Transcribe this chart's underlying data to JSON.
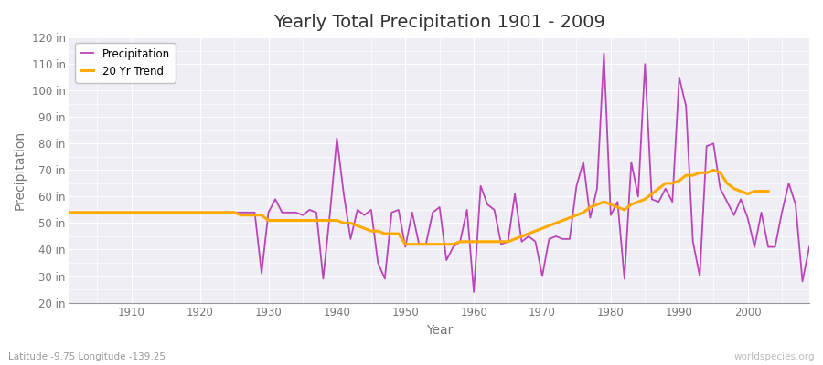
{
  "title": "Yearly Total Precipitation 1901 - 2009",
  "xlabel": "Year",
  "ylabel": "Precipitation",
  "lat_lon_label": "Latitude -9.75 Longitude -139.25",
  "watermark": "worldspecies.org",
  "ylim": [
    20,
    120
  ],
  "yticks": [
    20,
    30,
    40,
    50,
    60,
    70,
    80,
    90,
    100,
    110,
    120
  ],
  "ytick_labels": [
    "20 in",
    "30 in",
    "40 in",
    "50 in",
    "60 in",
    "70 in",
    "80 in",
    "90 in",
    "100 in",
    "110 in",
    "120 in"
  ],
  "xlim": [
    1901,
    2009
  ],
  "xticks": [
    1910,
    1920,
    1930,
    1940,
    1950,
    1960,
    1970,
    1980,
    1990,
    2000
  ],
  "outer_bg_color": "#ffffff",
  "plot_bg_color": "#eeeef4",
  "grid_color": "#ffffff",
  "precip_color": "#bb44bb",
  "trend_color": "#ffaa00",
  "precip_label": "Precipitation",
  "trend_label": "20 Yr Trend",
  "title_color": "#333333",
  "axis_color": "#777777",
  "years": [
    1901,
    1902,
    1903,
    1904,
    1905,
    1906,
    1907,
    1908,
    1909,
    1910,
    1911,
    1912,
    1913,
    1914,
    1915,
    1916,
    1917,
    1918,
    1919,
    1920,
    1921,
    1922,
    1923,
    1924,
    1925,
    1926,
    1927,
    1928,
    1929,
    1930,
    1931,
    1932,
    1933,
    1934,
    1935,
    1936,
    1937,
    1938,
    1939,
    1940,
    1941,
    1942,
    1943,
    1944,
    1945,
    1946,
    1947,
    1948,
    1949,
    1950,
    1951,
    1952,
    1953,
    1954,
    1955,
    1956,
    1957,
    1958,
    1959,
    1960,
    1961,
    1962,
    1963,
    1964,
    1965,
    1966,
    1967,
    1968,
    1969,
    1970,
    1971,
    1972,
    1973,
    1974,
    1975,
    1976,
    1977,
    1978,
    1979,
    1980,
    1981,
    1982,
    1983,
    1984,
    1985,
    1986,
    1987,
    1988,
    1989,
    1990,
    1991,
    1992,
    1993,
    1994,
    1995,
    1996,
    1997,
    1998,
    1999,
    2000,
    2001,
    2002,
    2003,
    2004,
    2005,
    2006,
    2007,
    2008,
    2009
  ],
  "precipitation": [
    54,
    54,
    54,
    54,
    54,
    54,
    54,
    54,
    54,
    54,
    54,
    54,
    54,
    54,
    54,
    54,
    54,
    54,
    54,
    54,
    54,
    54,
    54,
    54,
    54,
    54,
    54,
    54,
    31,
    54,
    59,
    54,
    54,
    54,
    53,
    55,
    54,
    29,
    54,
    82,
    61,
    44,
    55,
    53,
    55,
    35,
    29,
    54,
    55,
    41,
    54,
    42,
    42,
    54,
    56,
    36,
    41,
    43,
    55,
    24,
    64,
    57,
    55,
    42,
    43,
    61,
    43,
    45,
    43,
    30,
    44,
    45,
    44,
    44,
    64,
    73,
    52,
    63,
    114,
    53,
    58,
    29,
    73,
    60,
    110,
    59,
    58,
    63,
    58,
    105,
    94,
    43,
    30,
    79,
    80,
    63,
    58,
    53,
    59,
    52,
    41,
    54,
    41,
    41,
    54,
    65,
    57,
    28,
    41
  ],
  "trend": [
    54,
    54,
    54,
    54,
    54,
    54,
    54,
    54,
    54,
    54,
    54,
    54,
    54,
    54,
    54,
    54,
    54,
    54,
    54,
    54,
    54,
    54,
    54,
    54,
    54,
    53,
    53,
    53,
    53,
    51,
    51,
    51,
    51,
    51,
    51,
    51,
    51,
    51,
    51,
    51,
    50,
    50,
    49,
    48,
    47,
    47,
    46,
    46,
    46,
    42,
    42,
    42,
    42,
    42,
    42,
    42,
    42,
    43,
    43,
    43,
    43,
    43,
    43,
    43,
    43,
    44,
    45,
    46,
    47,
    48,
    49,
    50,
    51,
    52,
    53,
    54,
    56,
    57,
    58,
    57,
    56,
    55,
    57,
    58,
    59,
    61,
    63,
    65,
    65,
    66,
    68,
    68,
    69,
    69,
    70,
    69,
    65,
    63,
    62,
    61,
    62,
    62,
    62,
    null,
    null,
    null,
    null,
    null,
    null
  ]
}
